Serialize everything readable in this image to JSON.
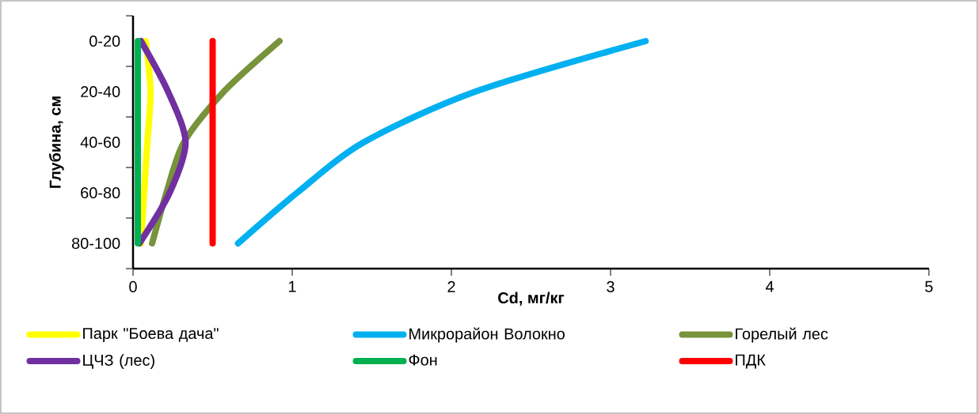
{
  "chart_data": {
    "type": "line",
    "orientation": "horizontal",
    "xlabel": "Cd, мг/кг",
    "ylabel": "Глубина, см",
    "categories": [
      "0-20",
      "20-40",
      "40-60",
      "60-80",
      "80-100"
    ],
    "xlim": [
      0,
      5
    ],
    "xticks": [
      0,
      1,
      2,
      3,
      4,
      5
    ],
    "legend": "bottom",
    "series": [
      {
        "name": "Парк \"Боева дача\"",
        "color": "#ffff00",
        "values": [
          0.08,
          0.11,
          0.09,
          0.07,
          0.05
        ]
      },
      {
        "name": "Микрорайон Волокно",
        "color": "#00b0f0",
        "values": [
          3.22,
          2.15,
          1.45,
          1.03,
          0.66
        ]
      },
      {
        "name": "Горелый лес",
        "color": "#77933c",
        "values": [
          0.92,
          0.57,
          0.32,
          0.21,
          0.12
        ]
      },
      {
        "name": "ЦЧЗ (лес)",
        "color": "#7030a0",
        "values": [
          0.05,
          0.22,
          0.33,
          0.23,
          0.04
        ]
      },
      {
        "name": "Фон",
        "color": "#00b050",
        "values": [
          0.03,
          0.03,
          0.03,
          0.03,
          0.03
        ]
      },
      {
        "name": "ПДК",
        "color": "#ff0000",
        "values": [
          0.5,
          0.5,
          0.5,
          0.5,
          0.5
        ]
      }
    ]
  }
}
